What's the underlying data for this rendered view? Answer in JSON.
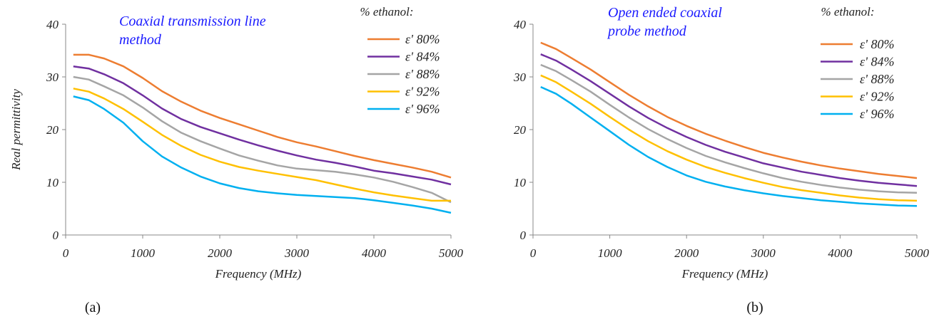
{
  "chart_data": [
    {
      "type": "line",
      "panel_label": "(a)",
      "title": "Coaxial transmission line method",
      "title_color": "#1a1aff",
      "xlabel": "Frequency (MHz)",
      "ylabel": "Real permittivity",
      "xlim": [
        0,
        5000
      ],
      "ylim": [
        0,
        40
      ],
      "xticks": [
        0,
        1000,
        2000,
        3000,
        4000,
        5000
      ],
      "yticks": [
        0,
        10,
        20,
        30,
        40
      ],
      "grid": false,
      "legend_title": "% ethanol:",
      "legend_position": "top-right",
      "x": [
        100,
        300,
        500,
        750,
        1000,
        1250,
        1500,
        1750,
        2000,
        2250,
        2500,
        2750,
        3000,
        3250,
        3500,
        3750,
        4000,
        4250,
        4500,
        4750,
        5000
      ],
      "series": [
        {
          "name": "ε' 80%",
          "color": "#ed7d31",
          "values": [
            34.2,
            34.2,
            33.5,
            32.0,
            29.8,
            27.3,
            25.3,
            23.6,
            22.2,
            21.0,
            19.8,
            18.6,
            17.6,
            16.8,
            15.9,
            15.0,
            14.2,
            13.5,
            12.8,
            12.0,
            10.9
          ]
        },
        {
          "name": "ε' 84%",
          "color": "#7030a0",
          "values": [
            32.0,
            31.6,
            30.5,
            28.8,
            26.5,
            24.0,
            22.0,
            20.5,
            19.3,
            18.1,
            17.0,
            16.0,
            15.1,
            14.3,
            13.7,
            13.0,
            12.2,
            11.7,
            11.1,
            10.5,
            9.6
          ]
        },
        {
          "name": "ε' 88%",
          "color": "#a5a5a5",
          "values": [
            30.0,
            29.5,
            28.2,
            26.5,
            24.2,
            21.6,
            19.4,
            17.8,
            16.4,
            15.1,
            14.1,
            13.2,
            12.6,
            12.3,
            12.0,
            11.5,
            10.9,
            10.1,
            9.1,
            8.0,
            6.2
          ]
        },
        {
          "name": "ε' 92%",
          "color": "#ffc000",
          "values": [
            27.8,
            27.2,
            25.9,
            23.9,
            21.5,
            19.0,
            16.9,
            15.2,
            13.9,
            12.9,
            12.2,
            11.6,
            11.0,
            10.4,
            9.6,
            8.8,
            8.1,
            7.5,
            7.0,
            6.5,
            6.5
          ]
        },
        {
          "name": "ε' 96%",
          "color": "#00b0f0",
          "values": [
            26.3,
            25.6,
            23.9,
            21.3,
            17.8,
            14.9,
            12.8,
            11.1,
            9.8,
            8.9,
            8.3,
            7.9,
            7.6,
            7.4,
            7.2,
            7.0,
            6.6,
            6.1,
            5.6,
            5.0,
            4.2
          ]
        }
      ]
    },
    {
      "type": "line",
      "panel_label": "(b)",
      "title": "Open ended coaxial probe method",
      "title_color": "#1a1aff",
      "xlabel": "Frequency (MHz)",
      "ylabel": "",
      "xlim": [
        0,
        5000
      ],
      "ylim": [
        0,
        40
      ],
      "xticks": [
        0,
        1000,
        2000,
        3000,
        4000,
        5000
      ],
      "yticks": [
        0,
        10,
        20,
        30,
        40
      ],
      "grid": false,
      "legend_title": "% ethanol:",
      "legend_position": "top-right",
      "x": [
        100,
        300,
        500,
        750,
        1000,
        1250,
        1500,
        1750,
        2000,
        2250,
        2500,
        2750,
        3000,
        3250,
        3500,
        3750,
        4000,
        4250,
        4500,
        4750,
        5000
      ],
      "series": [
        {
          "name": "ε' 80%",
          "color": "#ed7d31",
          "values": [
            36.5,
            35.3,
            33.6,
            31.4,
            29.0,
            26.6,
            24.4,
            22.4,
            20.7,
            19.2,
            17.9,
            16.7,
            15.6,
            14.7,
            13.9,
            13.2,
            12.6,
            12.1,
            11.6,
            11.2,
            10.8
          ]
        },
        {
          "name": "ε' 84%",
          "color": "#7030a0",
          "values": [
            34.3,
            33.1,
            31.4,
            29.2,
            26.8,
            24.4,
            22.2,
            20.3,
            18.6,
            17.1,
            15.8,
            14.7,
            13.6,
            12.8,
            12.0,
            11.4,
            10.8,
            10.3,
            9.9,
            9.6,
            9.3
          ]
        },
        {
          "name": "ε' 88%",
          "color": "#a5a5a5",
          "values": [
            32.3,
            31.1,
            29.4,
            27.2,
            24.7,
            22.3,
            20.1,
            18.2,
            16.5,
            15.0,
            13.8,
            12.7,
            11.7,
            10.8,
            10.1,
            9.5,
            9.0,
            8.6,
            8.3,
            8.1,
            8.0
          ]
        },
        {
          "name": "ε' 92%",
          "color": "#ffc000",
          "values": [
            30.3,
            29.0,
            27.2,
            24.9,
            22.4,
            20.0,
            17.8,
            15.9,
            14.3,
            12.9,
            11.8,
            10.8,
            9.9,
            9.1,
            8.5,
            8.0,
            7.5,
            7.1,
            6.8,
            6.6,
            6.5
          ]
        },
        {
          "name": "ε' 96%",
          "color": "#00b0f0",
          "values": [
            28.1,
            26.8,
            24.9,
            22.3,
            19.7,
            17.1,
            14.8,
            12.9,
            11.3,
            10.1,
            9.2,
            8.5,
            7.9,
            7.4,
            7.0,
            6.6,
            6.3,
            6.0,
            5.8,
            5.6,
            5.5
          ]
        }
      ]
    }
  ]
}
